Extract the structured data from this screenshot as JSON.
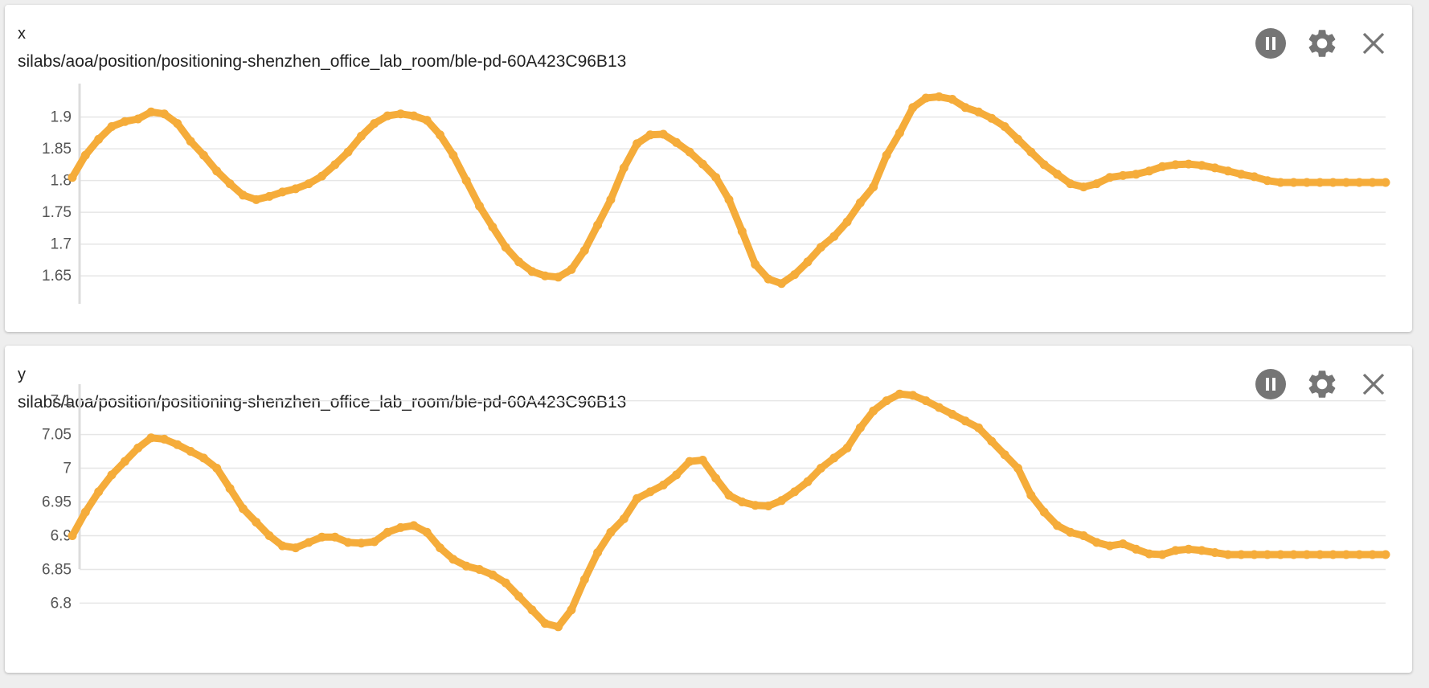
{
  "colors": {
    "series": "#f5ac3a",
    "icon": "#757575"
  },
  "icons": {
    "pause": "pause-circle-icon",
    "settings": "gear-icon",
    "close": "close-icon"
  },
  "chart_data": [
    {
      "type": "line",
      "title": "x",
      "subtitle": "silabs/aoa/position/positioning-shenzhen_office_lab_room/ble-pd-60A423C96B13",
      "ylim": [
        1.63,
        1.935
      ],
      "yticks": [
        "1.65",
        "1.7",
        "1.75",
        "1.8",
        "1.85",
        "1.9"
      ],
      "grid": true,
      "x": [
        0,
        10,
        20,
        30,
        40,
        50,
        60,
        70,
        80,
        90,
        100,
        110,
        120,
        130,
        140,
        150,
        160,
        170,
        180,
        190,
        200,
        210,
        220,
        230,
        240,
        250,
        260,
        270,
        280,
        290,
        300,
        310,
        320,
        330,
        340,
        350,
        360,
        370,
        380,
        390,
        400,
        410,
        420,
        430,
        440,
        450,
        460,
        470,
        480,
        490,
        500,
        510,
        520,
        530,
        540,
        550,
        560,
        570,
        580,
        590,
        600,
        610,
        620,
        630,
        640,
        650,
        660,
        670,
        680,
        690,
        700,
        710,
        720,
        730,
        740,
        750,
        760,
        770,
        780,
        790,
        800,
        810,
        820,
        830,
        840,
        850,
        860,
        870,
        880,
        890,
        900,
        910,
        920,
        930,
        940,
        950,
        960,
        970,
        980,
        990,
        1000
      ],
      "values": [
        1.805,
        1.84,
        1.865,
        1.885,
        1.893,
        1.897,
        1.908,
        1.905,
        1.89,
        1.862,
        1.84,
        1.815,
        1.795,
        1.777,
        1.77,
        1.775,
        1.782,
        1.787,
        1.795,
        1.807,
        1.825,
        1.845,
        1.87,
        1.89,
        1.902,
        1.905,
        1.902,
        1.895,
        1.872,
        1.84,
        1.8,
        1.76,
        1.727,
        1.695,
        1.672,
        1.657,
        1.65,
        1.648,
        1.66,
        1.69,
        1.73,
        1.77,
        1.82,
        1.858,
        1.872,
        1.873,
        1.86,
        1.845,
        1.826,
        1.805,
        1.77,
        1.72,
        1.668,
        1.645,
        1.638,
        1.652,
        1.672,
        1.695,
        1.712,
        1.735,
        1.765,
        1.79,
        1.84,
        1.875,
        1.915,
        1.93,
        1.932,
        1.928,
        1.915,
        1.908,
        1.898,
        1.885,
        1.865,
        1.845,
        1.825,
        1.81,
        1.795,
        1.79,
        1.795,
        1.805,
        1.808,
        1.81,
        1.815,
        1.822,
        1.825,
        1.826,
        1.824,
        1.82,
        1.815,
        1.81,
        1.806,
        1.8,
        1.797,
        1.797,
        1.797,
        1.797,
        1.797,
        1.797,
        1.797,
        1.797,
        1.797
      ]
    },
    {
      "type": "line",
      "title": "y",
      "subtitle": "silabs/aoa/position/positioning-shenzhen_office_lab_room/ble-pd-60A423C96B13",
      "ylim": [
        6.76,
        7.115
      ],
      "yticks": [
        "6.8",
        "6.85",
        "6.9",
        "6.95",
        "7",
        "7.05",
        "7.1"
      ],
      "grid": true,
      "x": [
        0,
        10,
        20,
        30,
        40,
        50,
        60,
        70,
        80,
        90,
        100,
        110,
        120,
        130,
        140,
        150,
        160,
        170,
        180,
        190,
        200,
        210,
        220,
        230,
        240,
        250,
        260,
        270,
        280,
        290,
        300,
        310,
        320,
        330,
        340,
        350,
        360,
        370,
        380,
        390,
        400,
        410,
        420,
        430,
        440,
        450,
        460,
        470,
        480,
        490,
        500,
        510,
        520,
        530,
        540,
        550,
        560,
        570,
        580,
        590,
        600,
        610,
        620,
        630,
        640,
        650,
        660,
        670,
        680,
        690,
        700,
        710,
        720,
        730,
        740,
        750,
        760,
        770,
        780,
        790,
        800,
        810,
        820,
        830,
        840,
        850,
        860,
        870,
        880,
        890,
        900,
        910,
        920,
        930,
        940,
        950,
        960,
        970,
        980,
        990,
        1000
      ],
      "values": [
        6.9,
        6.935,
        6.965,
        6.99,
        7.01,
        7.03,
        7.045,
        7.043,
        7.035,
        7.025,
        7.015,
        7.0,
        6.97,
        6.94,
        6.92,
        6.9,
        6.885,
        6.882,
        6.89,
        6.898,
        6.898,
        6.89,
        6.889,
        6.891,
        6.905,
        6.912,
        6.915,
        6.905,
        6.882,
        6.865,
        6.855,
        6.85,
        6.842,
        6.83,
        6.81,
        6.79,
        6.77,
        6.765,
        6.79,
        6.835,
        6.875,
        6.905,
        6.925,
        6.955,
        6.965,
        6.975,
        6.99,
        7.01,
        7.012,
        6.985,
        6.96,
        6.95,
        6.945,
        6.944,
        6.952,
        6.965,
        6.98,
        7.0,
        7.015,
        7.03,
        7.06,
        7.085,
        7.1,
        7.11,
        7.108,
        7.1,
        7.09,
        7.08,
        7.07,
        7.06,
        7.04,
        7.02,
        7.0,
        6.96,
        6.935,
        6.915,
        6.905,
        6.9,
        6.89,
        6.885,
        6.888,
        6.88,
        6.873,
        6.872,
        6.878,
        6.88,
        6.878,
        6.875,
        6.872,
        6.872,
        6.872,
        6.872,
        6.872,
        6.872,
        6.872,
        6.872,
        6.872,
        6.872,
        6.872,
        6.872,
        6.872
      ]
    }
  ]
}
